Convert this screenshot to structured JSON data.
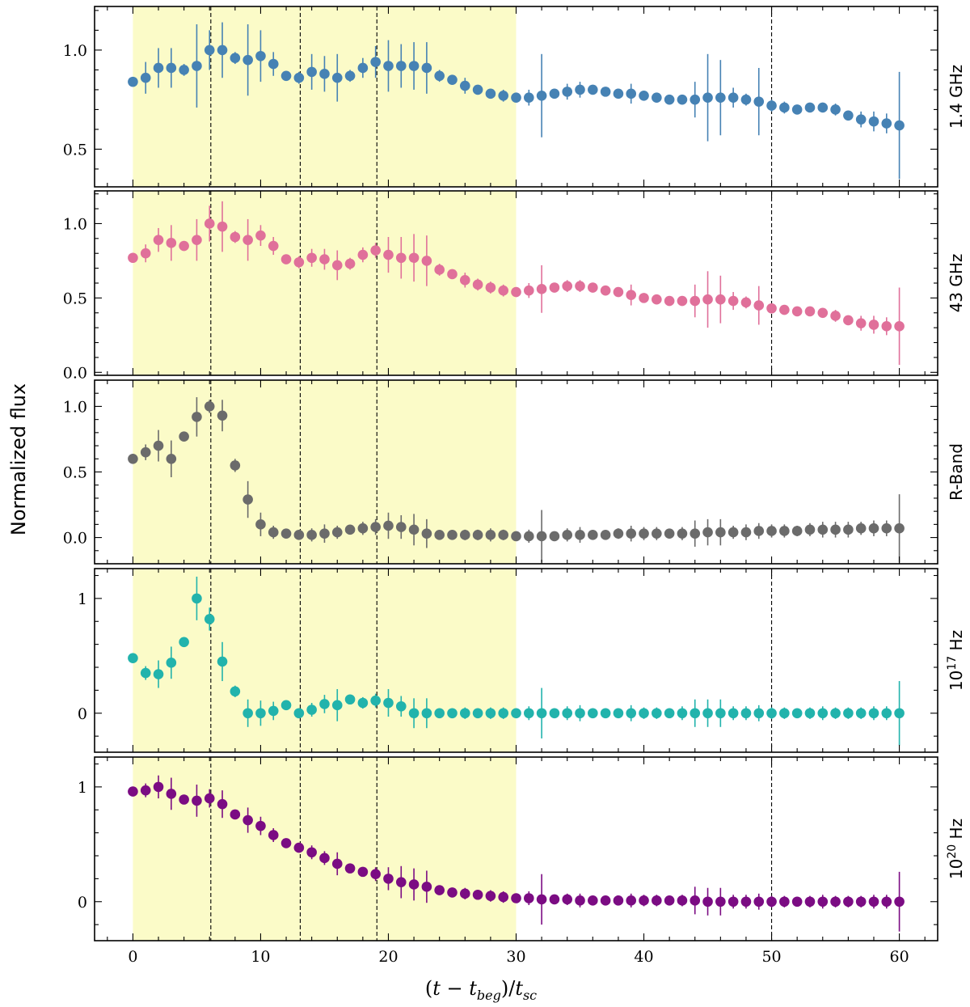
{
  "chart_data": {
    "type": "scatter",
    "title": "",
    "xlabel": "(t − t_beg)/t_sc",
    "xlabel_parts": {
      "open": "(",
      "t": "t",
      "minus": " − ",
      "tbeg": "t",
      "beg": "beg",
      "close": ")/",
      "tsc": "t",
      "sc": "sc"
    },
    "ylabel": "Normalized flux",
    "xlim": [
      -3,
      63
    ],
    "xticks": [
      0,
      10,
      20,
      30,
      40,
      50,
      60
    ],
    "xtick_labels": [
      "0",
      "10",
      "20",
      "30",
      "40",
      "50",
      "60"
    ],
    "shaded_region": {
      "from": 0,
      "to": 30,
      "color": "#fbfbc8"
    },
    "vlines": [
      {
        "x": 6.1,
        "panels": [
          0,
          1,
          2,
          3,
          4
        ]
      },
      {
        "x": 13.1,
        "panels": [
          0,
          1,
          2,
          3,
          4
        ]
      },
      {
        "x": 19.1,
        "panels": [
          0,
          1,
          2,
          3,
          4
        ]
      },
      {
        "x": 50,
        "panels": [
          0,
          1,
          3,
          4
        ]
      }
    ],
    "x": [
      0,
      1,
      2,
      3,
      4,
      5,
      6,
      7,
      8,
      9,
      10,
      11,
      12,
      13,
      14,
      15,
      16,
      17,
      18,
      19,
      20,
      21,
      22,
      23,
      24,
      25,
      26,
      27,
      28,
      29,
      30,
      31,
      32,
      33,
      34,
      35,
      36,
      37,
      38,
      39,
      40,
      41,
      42,
      43,
      44,
      45,
      46,
      47,
      48,
      49,
      50,
      51,
      52,
      53,
      54,
      55,
      56,
      57,
      58,
      59,
      60
    ],
    "series": [
      {
        "name": "1.4 GHz",
        "color": "#4682b4",
        "ylim": [
          0.31,
          1.22
        ],
        "yticks": [
          0.5,
          1.0
        ],
        "ytick_labels": [
          "0.5",
          "1.0"
        ],
        "minor_step": 0.1,
        "values": [
          0.84,
          0.86,
          0.91,
          0.91,
          0.9,
          0.92,
          1.0,
          1.0,
          0.96,
          0.95,
          0.97,
          0.93,
          0.87,
          0.86,
          0.89,
          0.88,
          0.86,
          0.87,
          0.91,
          0.94,
          0.92,
          0.92,
          0.92,
          0.91,
          0.87,
          0.85,
          0.82,
          0.8,
          0.78,
          0.77,
          0.76,
          0.76,
          0.77,
          0.78,
          0.79,
          0.8,
          0.8,
          0.79,
          0.78,
          0.78,
          0.77,
          0.76,
          0.75,
          0.75,
          0.75,
          0.76,
          0.76,
          0.76,
          0.75,
          0.74,
          0.72,
          0.71,
          0.7,
          0.71,
          0.71,
          0.7,
          0.67,
          0.65,
          0.64,
          0.63,
          0.62
        ],
        "errors": [
          0.02,
          0.08,
          0.1,
          0.1,
          0.03,
          0.21,
          0.1,
          0.14,
          0.03,
          0.18,
          0.13,
          0.06,
          0.02,
          0.03,
          0.09,
          0.09,
          0.12,
          0.03,
          0.05,
          0.08,
          0.13,
          0.11,
          0.12,
          0.13,
          0.03,
          0.02,
          0.04,
          0.02,
          0.02,
          0.03,
          0.02,
          0.04,
          0.21,
          0.02,
          0.04,
          0.04,
          0.02,
          0.02,
          0.02,
          0.05,
          0.02,
          0.02,
          0.02,
          0.02,
          0.09,
          0.22,
          0.19,
          0.05,
          0.03,
          0.17,
          0.03,
          0.03,
          0.02,
          0.02,
          0.02,
          0.03,
          0.02,
          0.04,
          0.05,
          0.05,
          0.27
        ]
      },
      {
        "name": "43 GHz",
        "color": "#e0709a",
        "ylim": [
          -0.02,
          1.22
        ],
        "yticks": [
          0.0,
          0.5,
          1.0
        ],
        "ytick_labels": [
          "0.0",
          "0.5",
          "1.0"
        ],
        "minor_step": 0.1,
        "values": [
          0.77,
          0.8,
          0.89,
          0.87,
          0.85,
          0.89,
          1.0,
          0.98,
          0.91,
          0.89,
          0.92,
          0.85,
          0.76,
          0.74,
          0.77,
          0.76,
          0.72,
          0.73,
          0.79,
          0.82,
          0.79,
          0.77,
          0.77,
          0.75,
          0.69,
          0.66,
          0.62,
          0.59,
          0.57,
          0.55,
          0.54,
          0.55,
          0.56,
          0.57,
          0.58,
          0.58,
          0.57,
          0.55,
          0.54,
          0.52,
          0.5,
          0.49,
          0.48,
          0.48,
          0.48,
          0.49,
          0.49,
          0.48,
          0.47,
          0.45,
          0.43,
          0.42,
          0.41,
          0.41,
          0.4,
          0.38,
          0.35,
          0.33,
          0.32,
          0.31,
          0.31
        ],
        "errors": [
          0.02,
          0.06,
          0.08,
          0.12,
          0.03,
          0.14,
          0.12,
          0.17,
          0.04,
          0.14,
          0.07,
          0.06,
          0.03,
          0.04,
          0.06,
          0.07,
          0.1,
          0.04,
          0.05,
          0.05,
          0.12,
          0.14,
          0.16,
          0.17,
          0.04,
          0.03,
          0.05,
          0.04,
          0.04,
          0.04,
          0.03,
          0.05,
          0.16,
          0.02,
          0.04,
          0.04,
          0.02,
          0.02,
          0.03,
          0.07,
          0.02,
          0.02,
          0.02,
          0.03,
          0.11,
          0.19,
          0.16,
          0.06,
          0.04,
          0.13,
          0.03,
          0.03,
          0.02,
          0.02,
          0.03,
          0.04,
          0.03,
          0.05,
          0.06,
          0.06,
          0.26
        ]
      },
      {
        "name": "R-Band",
        "color": "#6b6b6b",
        "ylim": [
          -0.2,
          1.2
        ],
        "yticks": [
          0.0,
          0.5,
          1.0
        ],
        "ytick_labels": [
          "0.0",
          "0.5",
          "1.0"
        ],
        "minor_step": 0.1,
        "values": [
          0.6,
          0.65,
          0.7,
          0.6,
          0.77,
          0.92,
          1.0,
          0.93,
          0.55,
          0.29,
          0.1,
          0.04,
          0.03,
          0.02,
          0.02,
          0.03,
          0.04,
          0.06,
          0.07,
          0.08,
          0.09,
          0.08,
          0.06,
          0.03,
          0.02,
          0.02,
          0.02,
          0.02,
          0.02,
          0.02,
          0.01,
          0.01,
          0.01,
          0.01,
          0.02,
          0.02,
          0.02,
          0.02,
          0.03,
          0.03,
          0.03,
          0.03,
          0.03,
          0.03,
          0.03,
          0.04,
          0.04,
          0.04,
          0.04,
          0.05,
          0.05,
          0.05,
          0.05,
          0.06,
          0.06,
          0.06,
          0.06,
          0.07,
          0.07,
          0.07,
          0.07
        ],
        "errors": [
          0.03,
          0.06,
          0.12,
          0.14,
          0.02,
          0.15,
          0.05,
          0.12,
          0.05,
          0.14,
          0.09,
          0.05,
          0.03,
          0.03,
          0.05,
          0.07,
          0.05,
          0.03,
          0.05,
          0.06,
          0.1,
          0.09,
          0.12,
          0.11,
          0.03,
          0.02,
          0.04,
          0.04,
          0.05,
          0.04,
          0.03,
          0.05,
          0.2,
          0.03,
          0.05,
          0.06,
          0.03,
          0.03,
          0.04,
          0.06,
          0.05,
          0.05,
          0.03,
          0.05,
          0.1,
          0.1,
          0.1,
          0.05,
          0.06,
          0.06,
          0.05,
          0.05,
          0.04,
          0.05,
          0.06,
          0.06,
          0.06,
          0.05,
          0.06,
          0.06,
          0.26
        ]
      },
      {
        "name": "10¹⁷ Hz",
        "name_parts": {
          "base": "10",
          "exp": "17",
          "unit": " Hz"
        },
        "color": "#22b3ac",
        "ylim": [
          -0.34,
          1.26
        ],
        "yticks": [
          0,
          1
        ],
        "ytick_labels": [
          "0",
          "1"
        ],
        "minor_step": 0.2,
        "values": [
          0.48,
          0.35,
          0.34,
          0.44,
          0.62,
          1.0,
          0.82,
          0.45,
          0.19,
          0.0,
          0.0,
          0.02,
          0.07,
          0.0,
          0.03,
          0.08,
          0.07,
          0.12,
          0.09,
          0.11,
          0.09,
          0.06,
          0.0,
          0.0,
          0.0,
          0.0,
          0.0,
          0.0,
          0.0,
          0.0,
          0.0,
          0.0,
          0.0,
          0.0,
          0.0,
          0.0,
          0.0,
          0.0,
          0.0,
          0.0,
          0.0,
          0.0,
          0.0,
          0.0,
          0.0,
          0.0,
          0.0,
          0.0,
          0.0,
          0.0,
          0.0,
          0.0,
          0.0,
          0.0,
          0.0,
          0.0,
          0.0,
          0.0,
          0.0,
          0.0,
          0.0
        ],
        "errors": [
          0.02,
          0.06,
          0.12,
          0.14,
          0.02,
          0.19,
          0.1,
          0.17,
          0.05,
          0.12,
          0.11,
          0.08,
          0.03,
          0.04,
          0.06,
          0.08,
          0.14,
          0.03,
          0.05,
          0.06,
          0.12,
          0.09,
          0.13,
          0.13,
          0.04,
          0.03,
          0.05,
          0.04,
          0.05,
          0.05,
          0.04,
          0.06,
          0.22,
          0.03,
          0.06,
          0.07,
          0.03,
          0.03,
          0.04,
          0.07,
          0.05,
          0.05,
          0.04,
          0.06,
          0.12,
          0.12,
          0.12,
          0.06,
          0.06,
          0.07,
          0.05,
          0.05,
          0.04,
          0.05,
          0.06,
          0.05,
          0.05,
          0.05,
          0.06,
          0.06,
          0.28
        ]
      },
      {
        "name": "10²⁰ Hz",
        "name_parts": {
          "base": "10",
          "exp": "20",
          "unit": " Hz"
        },
        "color": "#7b0c83",
        "ylim": [
          -0.34,
          1.26
        ],
        "yticks": [
          0,
          1
        ],
        "ytick_labels": [
          "0",
          "1"
        ],
        "minor_step": 0.2,
        "values": [
          0.96,
          0.97,
          1.0,
          0.94,
          0.89,
          0.88,
          0.9,
          0.85,
          0.76,
          0.71,
          0.66,
          0.58,
          0.51,
          0.47,
          0.43,
          0.38,
          0.33,
          0.29,
          0.26,
          0.24,
          0.2,
          0.17,
          0.15,
          0.13,
          0.1,
          0.08,
          0.07,
          0.06,
          0.05,
          0.04,
          0.03,
          0.03,
          0.02,
          0.02,
          0.02,
          0.01,
          0.01,
          0.01,
          0.01,
          0.01,
          0.01,
          0.01,
          0.01,
          0.01,
          0.01,
          0.0,
          0.0,
          0.0,
          0.0,
          0.0,
          0.0,
          0.0,
          0.0,
          0.0,
          0.0,
          0.0,
          0.0,
          0.0,
          0.0,
          0.0,
          0.0
        ],
        "errors": [
          0.02,
          0.06,
          0.1,
          0.14,
          0.02,
          0.14,
          0.08,
          0.12,
          0.04,
          0.11,
          0.08,
          0.06,
          0.02,
          0.04,
          0.06,
          0.06,
          0.1,
          0.03,
          0.04,
          0.06,
          0.1,
          0.14,
          0.14,
          0.14,
          0.03,
          0.03,
          0.05,
          0.04,
          0.05,
          0.05,
          0.03,
          0.06,
          0.22,
          0.03,
          0.05,
          0.06,
          0.02,
          0.02,
          0.04,
          0.06,
          0.05,
          0.05,
          0.04,
          0.05,
          0.12,
          0.12,
          0.12,
          0.06,
          0.06,
          0.07,
          0.05,
          0.05,
          0.04,
          0.05,
          0.06,
          0.05,
          0.05,
          0.05,
          0.06,
          0.06,
          0.26
        ]
      }
    ]
  }
}
